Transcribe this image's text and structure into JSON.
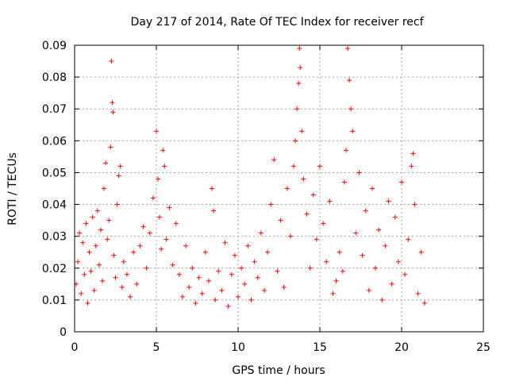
{
  "chart_data": {
    "type": "scatter",
    "title": "Day 217 of 2014, Rate Of TEC Index for receiver recf",
    "xlabel": "GPS time / hours",
    "ylabel": "ROTI / TECUs",
    "xlim": [
      0,
      25
    ],
    "ylim": [
      0,
      0.09
    ],
    "xticks": [
      "0",
      "5",
      "10",
      "15",
      "20",
      "25"
    ],
    "yticks": [
      "0",
      "0.01",
      "0.02",
      "0.03",
      "0.04",
      "0.05",
      "0.06",
      "0.07",
      "0.08",
      "0.09"
    ],
    "grid": true,
    "marker": "+",
    "color": "#ff0000",
    "series": [
      {
        "points": [
          [
            0.1,
            0.015
          ],
          [
            0.2,
            0.022
          ],
          [
            0.3,
            0.031
          ],
          [
            0.4,
            0.012
          ],
          [
            0.5,
            0.028
          ],
          [
            0.6,
            0.018
          ],
          [
            0.7,
            0.034
          ],
          [
            0.8,
            0.009
          ],
          [
            0.9,
            0.025
          ],
          [
            1.0,
            0.019
          ],
          [
            1.1,
            0.036
          ],
          [
            1.2,
            0.013
          ],
          [
            1.3,
            0.027
          ],
          [
            1.4,
            0.038
          ],
          [
            1.5,
            0.021
          ],
          [
            1.6,
            0.032
          ],
          [
            1.7,
            0.016
          ],
          [
            1.8,
            0.045
          ],
          [
            1.9,
            0.053
          ],
          [
            2.0,
            0.029
          ],
          [
            2.1,
            0.035
          ],
          [
            2.2,
            0.058
          ],
          [
            2.25,
            0.085
          ],
          [
            2.3,
            0.072
          ],
          [
            2.35,
            0.069
          ],
          [
            2.4,
            0.024
          ],
          [
            2.5,
            0.017
          ],
          [
            2.6,
            0.04
          ],
          [
            2.7,
            0.049
          ],
          [
            2.8,
            0.052
          ],
          [
            2.9,
            0.014
          ],
          [
            3.0,
            0.022
          ],
          [
            3.2,
            0.018
          ],
          [
            3.4,
            0.011
          ],
          [
            3.6,
            0.025
          ],
          [
            3.8,
            0.015
          ],
          [
            4.0,
            0.027
          ],
          [
            4.2,
            0.033
          ],
          [
            4.4,
            0.02
          ],
          [
            4.6,
            0.031
          ],
          [
            4.8,
            0.042
          ],
          [
            5.0,
            0.063
          ],
          [
            5.1,
            0.048
          ],
          [
            5.2,
            0.036
          ],
          [
            5.3,
            0.026
          ],
          [
            5.4,
            0.057
          ],
          [
            5.5,
            0.052
          ],
          [
            5.6,
            0.029
          ],
          [
            5.8,
            0.039
          ],
          [
            6.0,
            0.021
          ],
          [
            6.2,
            0.034
          ],
          [
            6.4,
            0.018
          ],
          [
            6.6,
            0.011
          ],
          [
            6.8,
            0.027
          ],
          [
            7.0,
            0.014
          ],
          [
            7.2,
            0.02
          ],
          [
            7.4,
            0.009
          ],
          [
            7.6,
            0.017
          ],
          [
            7.8,
            0.012
          ],
          [
            8.0,
            0.025
          ],
          [
            8.2,
            0.016
          ],
          [
            8.4,
            0.045
          ],
          [
            8.5,
            0.038
          ],
          [
            8.6,
            0.01
          ],
          [
            8.8,
            0.019
          ],
          [
            9.0,
            0.013
          ],
          [
            9.2,
            0.028
          ],
          [
            9.4,
            0.008
          ],
          [
            9.6,
            0.018
          ],
          [
            9.8,
            0.024
          ],
          [
            10.0,
            0.011
          ],
          [
            10.2,
            0.02
          ],
          [
            10.4,
            0.015
          ],
          [
            10.6,
            0.027
          ],
          [
            10.8,
            0.01
          ],
          [
            11.0,
            0.022
          ],
          [
            11.2,
            0.017
          ],
          [
            11.4,
            0.031
          ],
          [
            11.6,
            0.013
          ],
          [
            11.8,
            0.025
          ],
          [
            12.0,
            0.04
          ],
          [
            12.2,
            0.054
          ],
          [
            12.4,
            0.019
          ],
          [
            12.6,
            0.035
          ],
          [
            12.8,
            0.014
          ],
          [
            13.0,
            0.045
          ],
          [
            13.2,
            0.03
          ],
          [
            13.4,
            0.052
          ],
          [
            13.5,
            0.06
          ],
          [
            13.6,
            0.07
          ],
          [
            13.7,
            0.078
          ],
          [
            13.75,
            0.089
          ],
          [
            13.8,
            0.083
          ],
          [
            13.9,
            0.063
          ],
          [
            14.0,
            0.048
          ],
          [
            14.2,
            0.037
          ],
          [
            14.4,
            0.02
          ],
          [
            14.6,
            0.043
          ],
          [
            14.8,
            0.029
          ],
          [
            15.0,
            0.052
          ],
          [
            15.2,
            0.034
          ],
          [
            15.4,
            0.022
          ],
          [
            15.6,
            0.041
          ],
          [
            15.8,
            0.012
          ],
          [
            16.0,
            0.016
          ],
          [
            16.2,
            0.025
          ],
          [
            16.4,
            0.019
          ],
          [
            16.5,
            0.047
          ],
          [
            16.6,
            0.057
          ],
          [
            16.7,
            0.089
          ],
          [
            16.8,
            0.079
          ],
          [
            16.9,
            0.07
          ],
          [
            17.0,
            0.063
          ],
          [
            17.2,
            0.031
          ],
          [
            17.4,
            0.05
          ],
          [
            17.6,
            0.024
          ],
          [
            17.8,
            0.038
          ],
          [
            18.0,
            0.013
          ],
          [
            18.2,
            0.045
          ],
          [
            18.4,
            0.02
          ],
          [
            18.6,
            0.032
          ],
          [
            18.8,
            0.01
          ],
          [
            19.0,
            0.027
          ],
          [
            19.2,
            0.041
          ],
          [
            19.4,
            0.015
          ],
          [
            19.6,
            0.036
          ],
          [
            19.8,
            0.022
          ],
          [
            20.0,
            0.047
          ],
          [
            20.2,
            0.018
          ],
          [
            20.4,
            0.029
          ],
          [
            20.6,
            0.052
          ],
          [
            20.7,
            0.056
          ],
          [
            20.8,
            0.04
          ],
          [
            21.0,
            0.012
          ],
          [
            21.2,
            0.025
          ],
          [
            21.4,
            0.009
          ]
        ]
      }
    ]
  }
}
